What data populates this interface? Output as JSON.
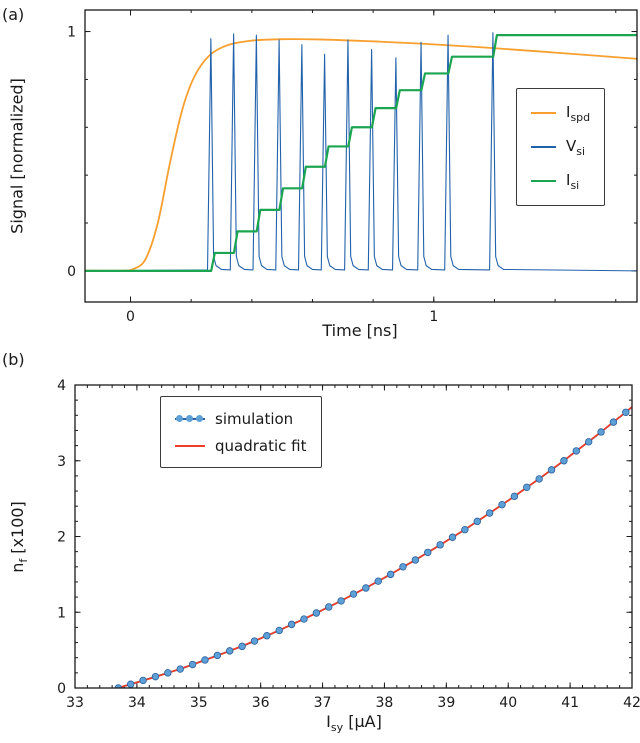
{
  "panels": {
    "a": {
      "label": "(a)"
    },
    "b": {
      "label": "(b)"
    }
  },
  "chart_data": [
    {
      "id": "chart-a",
      "type": "line",
      "title": "",
      "xlabel": "Time [ns]",
      "ylabel": "Signal [normalized]",
      "xlim": [
        -0.15,
        1.67
      ],
      "ylim": [
        -0.13,
        1.09
      ],
      "xticks": [
        0,
        1
      ],
      "xtick_labels": [
        "0",
        "1"
      ],
      "yticks": [
        0,
        1
      ],
      "ytick_labels": [
        "0",
        "1"
      ],
      "x_minor_step": 0.2,
      "y_minor_step": 0.2,
      "grid": false,
      "legend_loc": "center right",
      "legend": [
        {
          "pre": "I",
          "sub": "spd"
        },
        {
          "pre": "V",
          "sub": "si"
        },
        {
          "pre": "I",
          "sub": "si"
        }
      ],
      "series": [
        {
          "name": "I_spd",
          "kind": "smooth",
          "color": "#f89f2f",
          "width": 1.8,
          "x": [
            -0.15,
            -0.03,
            0.01,
            0.05,
            0.09,
            0.13,
            0.17,
            0.21,
            0.26,
            0.32,
            0.4,
            0.5,
            0.62,
            0.78,
            0.95,
            1.15,
            1.4,
            1.67
          ],
          "y": [
            0.001,
            0.001,
            0.008,
            0.05,
            0.2,
            0.45,
            0.67,
            0.81,
            0.9,
            0.943,
            0.962,
            0.968,
            0.967,
            0.96,
            0.95,
            0.935,
            0.912,
            0.886
          ]
        },
        {
          "name": "V_si",
          "kind": "spikes",
          "color": "#2262ab",
          "width": 1.1,
          "baseline": 0.0,
          "times": [
            0.27,
            0.345,
            0.42,
            0.495,
            0.57,
            0.645,
            0.722,
            0.8,
            0.88,
            0.963,
            1.052,
            1.2
          ],
          "peaks": [
            0.97,
            0.99,
            0.985,
            0.965,
            0.945,
            0.905,
            0.965,
            0.925,
            0.89,
            0.955,
            0.985,
            0.995
          ]
        },
        {
          "name": "I_si",
          "kind": "steps",
          "color": "#1ca551",
          "width": 2.2,
          "start_level": 0.0,
          "times": [
            0.27,
            0.345,
            0.42,
            0.495,
            0.57,
            0.645,
            0.722,
            0.8,
            0.88,
            0.963,
            1.052,
            1.2
          ],
          "levels": [
            0.075,
            0.165,
            0.255,
            0.345,
            0.435,
            0.52,
            0.6,
            0.68,
            0.755,
            0.825,
            0.895,
            0.985
          ]
        }
      ]
    },
    {
      "id": "chart-b",
      "type": "scatter",
      "title": "",
      "xlabel": "I_sy [uA]",
      "xlabel_parts": {
        "pre": "I",
        "sub": "sy",
        "post": " [µA]"
      },
      "ylabel": "n_f [x100]",
      "ylabel_parts": {
        "pre": "n",
        "sub": "f",
        "post": " [x100]"
      },
      "xlim": [
        33,
        42
      ],
      "ylim": [
        0,
        4
      ],
      "xticks": [
        33,
        34,
        35,
        36,
        37,
        38,
        39,
        40,
        41,
        42
      ],
      "xtick_labels": [
        "33",
        "34",
        "35",
        "36",
        "37",
        "38",
        "39",
        "40",
        "41",
        "42"
      ],
      "yticks": [
        0,
        1,
        2,
        3,
        4
      ],
      "ytick_labels": [
        "0",
        "1",
        "2",
        "3",
        "4"
      ],
      "x_minor_step": 0.2,
      "y_minor_step": 0.2,
      "grid": false,
      "legend_loc": "upper left",
      "legend": [
        {
          "label": "simulation"
        },
        {
          "label": "quadratic fit"
        }
      ],
      "series": [
        {
          "name": "simulation",
          "kind": "scatter-line",
          "line_color": "#2d5f9e",
          "marker_color": "#5da0d6",
          "width": 1.7,
          "marker_radius": 3.3,
          "x": [
            33.7,
            33.9,
            34.1,
            34.3,
            34.5,
            34.7,
            34.9,
            35.1,
            35.3,
            35.5,
            35.7,
            35.9,
            36.1,
            36.3,
            36.5,
            36.7,
            36.9,
            37.1,
            37.3,
            37.5,
            37.7,
            37.9,
            38.1,
            38.3,
            38.5,
            38.7,
            38.9,
            39.1,
            39.3,
            39.5,
            39.7,
            39.9,
            40.1,
            40.3,
            40.5,
            40.7,
            40.9,
            41.1,
            41.3,
            41.5,
            41.7,
            41.9,
            42.1
          ],
          "y": [
            0.0,
            0.05,
            0.1,
            0.15,
            0.2,
            0.25,
            0.31,
            0.37,
            0.43,
            0.49,
            0.55,
            0.62,
            0.69,
            0.76,
            0.84,
            0.91,
            0.99,
            1.07,
            1.15,
            1.24,
            1.32,
            1.41,
            1.5,
            1.6,
            1.69,
            1.79,
            1.89,
            1.99,
            2.09,
            2.2,
            2.31,
            2.42,
            2.53,
            2.65,
            2.76,
            2.88,
            3.0,
            3.13,
            3.25,
            3.38,
            3.51,
            3.64,
            3.78
          ]
        },
        {
          "name": "quadratic fit",
          "kind": "quad",
          "color": "#ee3d28",
          "width": 1.7,
          "coeffs": [
            0.0272,
            -1.6125,
            23.455
          ],
          "range": [
            33.68,
            42.0
          ]
        }
      ]
    }
  ]
}
